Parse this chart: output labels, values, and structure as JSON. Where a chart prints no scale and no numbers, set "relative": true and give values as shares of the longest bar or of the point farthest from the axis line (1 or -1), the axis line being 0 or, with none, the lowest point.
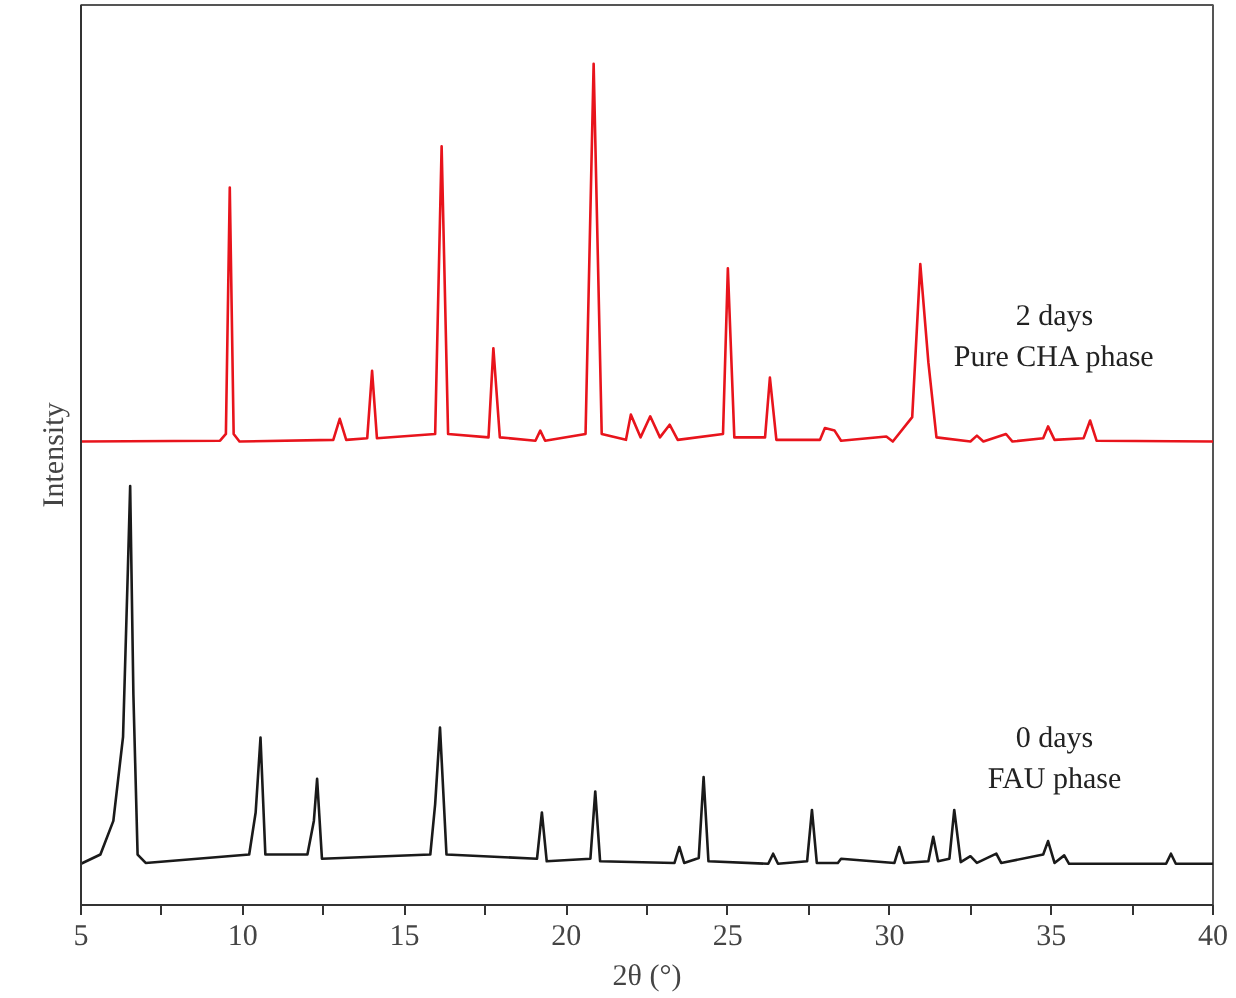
{
  "chart_data": {
    "type": "line",
    "relative": true,
    "xlabel": "2θ (°)",
    "ylabel": "Intensity",
    "xlim": [
      5,
      40
    ],
    "xticks": [
      5,
      {
        "value": 7.5,
        "label": null
      },
      10,
      {
        "value": 12.5,
        "label": null
      },
      15,
      {
        "value": 17.5,
        "label": null
      },
      20,
      {
        "value": 22.5,
        "label": null
      },
      25,
      {
        "value": 27.5,
        "label": null
      },
      30,
      {
        "value": 32.5,
        "label": null
      },
      35,
      {
        "value": 37.5,
        "label": null
      },
      40
    ],
    "grid": false,
    "legend": false,
    "marker": "none",
    "line_style": "solid",
    "series": [
      {
        "name": "2 days\nPure CHA phase",
        "color": "#e8141c",
        "x": [
          5.0,
          9.3,
          9.48,
          9.6,
          9.72,
          9.9,
          12.8,
          13.0,
          13.2,
          13.85,
          14.0,
          14.15,
          15.95,
          16.15,
          16.35,
          17.6,
          17.75,
          17.95,
          19.05,
          19.2,
          19.35,
          20.6,
          20.85,
          21.1,
          21.85,
          22.0,
          22.3,
          22.6,
          22.9,
          23.2,
          23.45,
          24.85,
          25.0,
          25.2,
          26.15,
          26.3,
          26.5,
          27.85,
          28.0,
          28.3,
          28.5,
          29.9,
          30.1,
          30.7,
          30.95,
          31.2,
          31.45,
          32.5,
          32.7,
          32.9,
          33.6,
          33.8,
          34.75,
          34.9,
          35.1,
          36.0,
          36.2,
          36.4,
          40.0
        ],
        "values": [
          0.551,
          0.552,
          0.56,
          0.853,
          0.56,
          0.551,
          0.553,
          0.578,
          0.553,
          0.555,
          0.635,
          0.555,
          0.56,
          0.902,
          0.56,
          0.556,
          0.662,
          0.556,
          0.552,
          0.564,
          0.552,
          0.56,
          1.0,
          0.56,
          0.553,
          0.583,
          0.556,
          0.581,
          0.556,
          0.571,
          0.553,
          0.56,
          0.757,
          0.556,
          0.556,
          0.627,
          0.553,
          0.553,
          0.567,
          0.564,
          0.552,
          0.557,
          0.551,
          0.58,
          0.762,
          0.645,
          0.556,
          0.551,
          0.558,
          0.551,
          0.56,
          0.551,
          0.555,
          0.569,
          0.553,
          0.555,
          0.576,
          0.552,
          0.551
        ]
      },
      {
        "name": "0 days\nFAU phase",
        "color": "#1a1a1a",
        "x": [
          5.0,
          5.6,
          6.0,
          6.3,
          6.45,
          6.52,
          6.62,
          6.75,
          7.0,
          10.2,
          10.4,
          10.55,
          10.7,
          12.0,
          12.2,
          12.3,
          12.45,
          15.8,
          15.95,
          16.1,
          16.3,
          19.1,
          19.25,
          19.4,
          20.75,
          20.9,
          21.05,
          23.35,
          23.5,
          23.65,
          24.1,
          24.25,
          24.4,
          26.25,
          26.4,
          26.55,
          27.45,
          27.6,
          27.75,
          28.4,
          28.5,
          30.15,
          30.3,
          30.45,
          31.2,
          31.35,
          31.5,
          31.85,
          32.0,
          32.2,
          32.5,
          32.7,
          33.3,
          33.45,
          34.75,
          34.9,
          35.1,
          35.4,
          35.55,
          38.55,
          38.7,
          38.85,
          40.0
        ],
        "values": [
          0.049,
          0.06,
          0.1,
          0.2,
          0.4,
          0.498,
          0.25,
          0.06,
          0.05,
          0.06,
          0.11,
          0.199,
          0.06,
          0.06,
          0.1,
          0.15,
          0.055,
          0.06,
          0.12,
          0.211,
          0.06,
          0.055,
          0.11,
          0.052,
          0.055,
          0.135,
          0.052,
          0.05,
          0.069,
          0.05,
          0.056,
          0.152,
          0.052,
          0.049,
          0.061,
          0.049,
          0.052,
          0.113,
          0.05,
          0.05,
          0.055,
          0.05,
          0.069,
          0.05,
          0.052,
          0.081,
          0.052,
          0.055,
          0.113,
          0.051,
          0.058,
          0.05,
          0.061,
          0.05,
          0.06,
          0.076,
          0.05,
          0.059,
          0.049,
          0.049,
          0.061,
          0.049,
          0.049
        ]
      }
    ]
  }
}
